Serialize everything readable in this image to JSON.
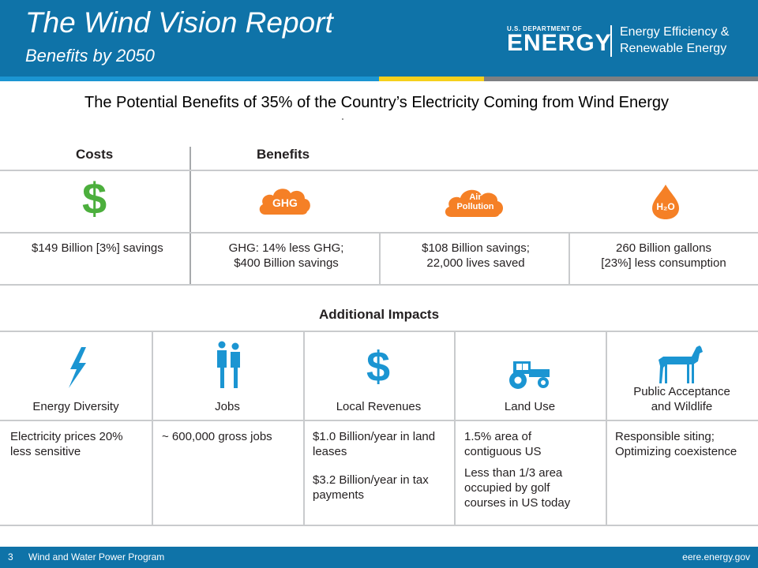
{
  "header": {
    "title": "The Wind Vision Report",
    "subtitle": "Benefits by 2050",
    "logo": {
      "small_text": "U.S. DEPARTMENT OF",
      "big_text": "ENERGY",
      "right_line1": "Energy Efficiency &",
      "right_line2": "Renewable Energy"
    }
  },
  "main_title": "The Potential Benefits of 35% of the Country’s Electricity Coming from Wind Energy",
  "costs_benefits": {
    "costs_heading": "Costs",
    "benefits_heading": "Benefits",
    "icons": {
      "costs": {
        "glyph": "$",
        "name": "dollar-icon",
        "color": "#4caf3d"
      },
      "ghg": {
        "text": "GHG",
        "name": "ghg-cloud-icon",
        "color": "#f58026"
      },
      "air_line1": "Air",
      "air_line2": "Pollution",
      "water": {
        "text": "H₂O",
        "name": "water-drop-icon",
        "color": "#f58026"
      }
    },
    "costs_value": "$149 Billion [3%] savings",
    "ghg_value_line1": "GHG: 14% less GHG;",
    "ghg_value_line2": "$400 Billion savings",
    "air_value_line1": "$108 Billion savings;",
    "air_value_line2": "22,000 lives saved",
    "water_value_line1": "260 Billion gallons",
    "water_value_line2": "[23%] less consumption"
  },
  "additional": {
    "heading": "Additional Impacts",
    "columns": [
      {
        "label": "Energy Diversity",
        "icon": "lightning-icon",
        "lines": [
          "Electricity prices 20%",
          "less sensitive"
        ]
      },
      {
        "label": "Jobs",
        "icon": "people-icon",
        "lines": [
          "~ 600,000 gross jobs"
        ]
      },
      {
        "label": "Local Revenues",
        "icon": "dollar-icon",
        "lines": [
          "$1.0 Billion/year in land",
          "leases"
        ],
        "lines2": [
          "$3.2 Billion/year in tax",
          "payments"
        ]
      },
      {
        "label": "Land Use",
        "icon": "tractor-icon",
        "lines": [
          "1.5% area of",
          "contiguous US"
        ],
        "lines2": [
          "Less than 1/3 area",
          "occupied by golf",
          "courses in US today"
        ]
      },
      {
        "label_line1": "Public Acceptance",
        "label_line2": "and Wildlife",
        "icon": "deer-icon",
        "lines": [
          "Responsible siting;",
          "Optimizing coexistence"
        ]
      }
    ],
    "icon_color": "#1b95d2"
  },
  "footer": {
    "page_number": "3",
    "program": "Wind and Water Power Program",
    "url": "eere.energy.gov"
  }
}
